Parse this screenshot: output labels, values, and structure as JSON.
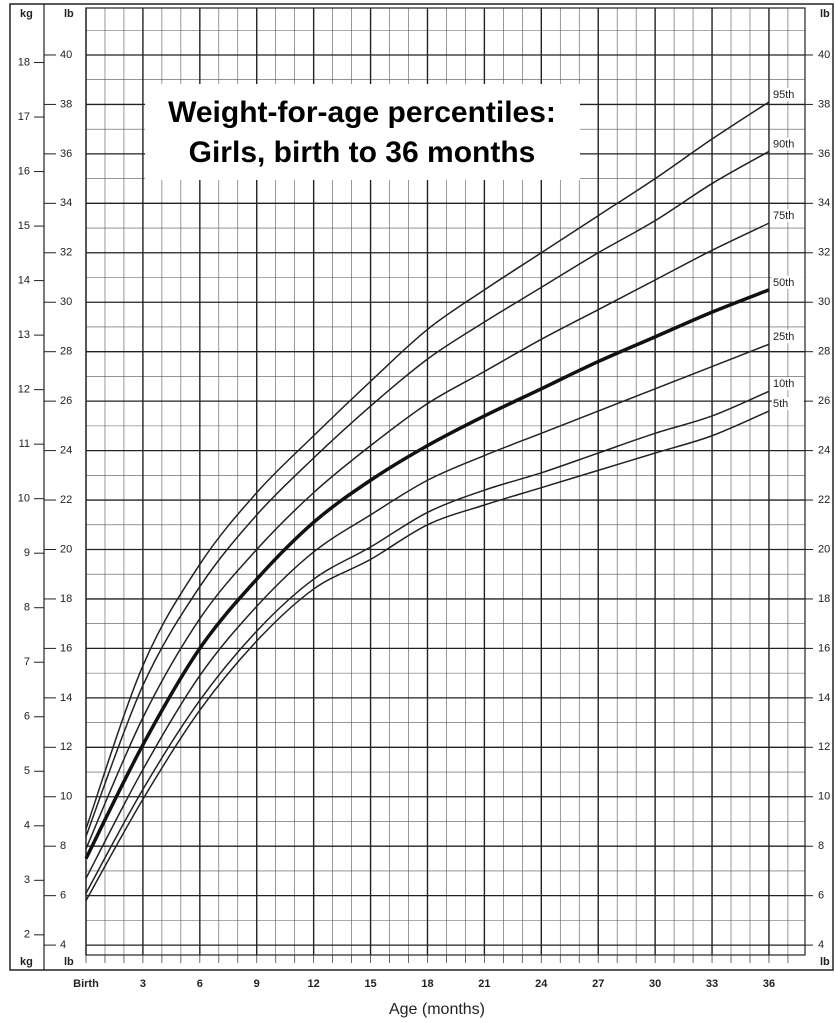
{
  "chart_data": {
    "type": "line",
    "title": [
      "Weight-for-age percentiles:",
      "Girls, birth to 36 months"
    ],
    "xlabel": "Age (months)",
    "y_unit": "lb",
    "y2_unit": "kg",
    "x": [
      0,
      3,
      6,
      9,
      12,
      15,
      18,
      21,
      24,
      27,
      30,
      33,
      36
    ],
    "xlim": [
      0,
      37.9
    ],
    "xticks": [
      {
        "value": 0,
        "label": "Birth"
      },
      3,
      6,
      9,
      12,
      15,
      18,
      21,
      24,
      27,
      30,
      33,
      36
    ],
    "ylim": [
      3.6,
      41.9
    ],
    "yticks": [
      4,
      6,
      8,
      10,
      12,
      14,
      16,
      18,
      20,
      22,
      24,
      26,
      28,
      30,
      32,
      34,
      36,
      38,
      40
    ],
    "y2lim": [
      1.63,
      19.0
    ],
    "y2ticks": [
      2,
      3,
      4,
      5,
      6,
      7,
      8,
      9,
      10,
      11,
      12,
      13,
      14,
      15,
      16,
      17,
      18
    ],
    "grid": true,
    "series": [
      {
        "name": "95th",
        "color": "#222222",
        "line_width": 1.5,
        "values": [
          8.7,
          15.3,
          19.4,
          22.3,
          24.6,
          26.8,
          28.9,
          30.5,
          32.0,
          33.5,
          35.0,
          36.6,
          38.1
        ]
      },
      {
        "name": "90th",
        "color": "#222222",
        "line_width": 1.5,
        "values": [
          8.4,
          14.5,
          18.5,
          21.4,
          23.7,
          25.8,
          27.7,
          29.2,
          30.6,
          32.0,
          33.3,
          34.8,
          36.1
        ]
      },
      {
        "name": "75th",
        "color": "#222222",
        "line_width": 1.5,
        "values": [
          7.9,
          13.2,
          17.2,
          20.0,
          22.3,
          24.2,
          25.9,
          27.2,
          28.5,
          29.7,
          30.9,
          32.1,
          33.2
        ]
      },
      {
        "name": "50th",
        "color": "#111111",
        "line_width": 3.5,
        "values": [
          7.5,
          12.1,
          16.0,
          18.8,
          21.1,
          22.8,
          24.2,
          25.4,
          26.5,
          27.6,
          28.6,
          29.6,
          30.5
        ]
      },
      {
        "name": "25th",
        "color": "#222222",
        "line_width": 1.5,
        "values": [
          6.7,
          11.1,
          14.9,
          17.7,
          19.9,
          21.4,
          22.8,
          23.8,
          24.7,
          25.6,
          26.5,
          27.4,
          28.3
        ]
      },
      {
        "name": "10th",
        "color": "#222222",
        "line_width": 1.5,
        "values": [
          6.1,
          10.3,
          13.9,
          16.7,
          18.8,
          20.1,
          21.5,
          22.4,
          23.1,
          23.9,
          24.7,
          25.4,
          26.4
        ]
      },
      {
        "name": "5th",
        "color": "#222222",
        "line_width": 1.5,
        "values": [
          5.8,
          9.9,
          13.5,
          16.3,
          18.4,
          19.6,
          21.0,
          21.8,
          22.5,
          23.2,
          23.9,
          24.6,
          25.6
        ]
      }
    ]
  }
}
